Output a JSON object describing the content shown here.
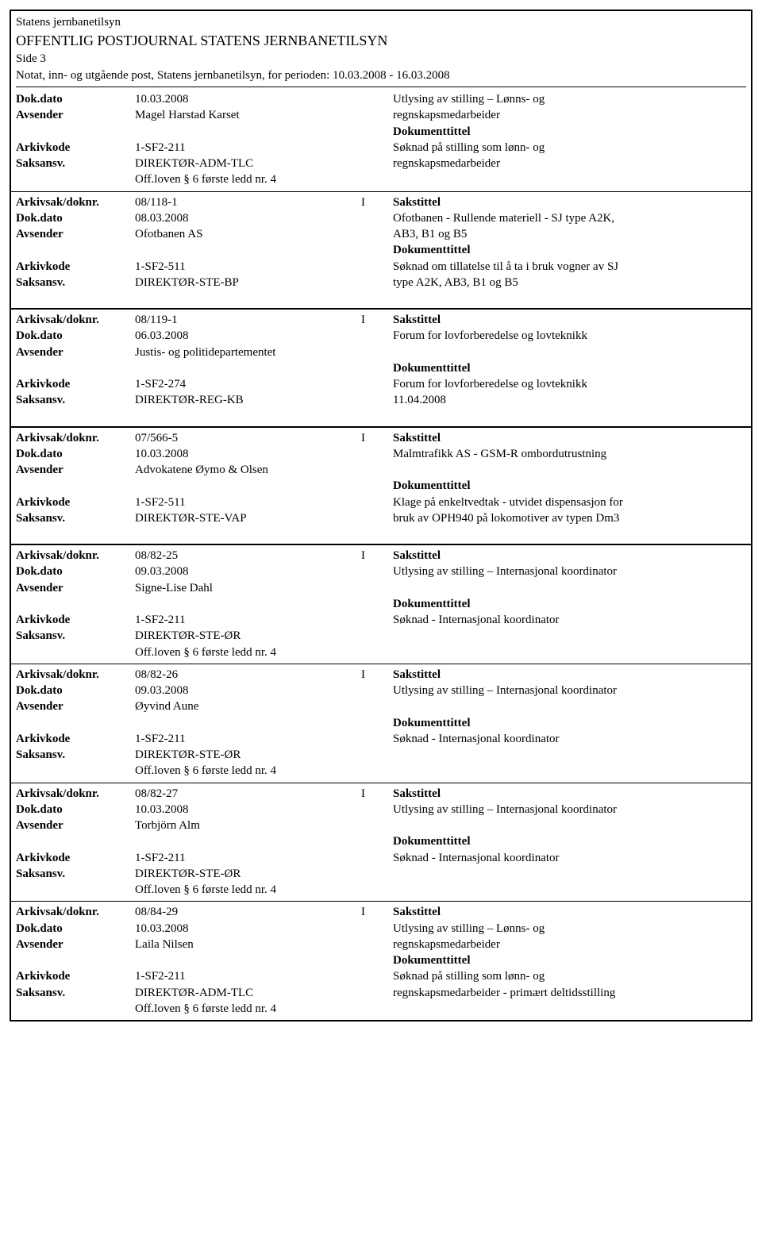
{
  "header": {
    "org": "Statens jernbanetilsyn",
    "title": "OFFENTLIG POSTJOURNAL STATENS JERNBANETILSYN",
    "side": "Side 3",
    "subtitle": "Notat, inn- og utgående post, Statens jernbanetilsyn, for perioden: 10.03.2008 - 16.03.2008"
  },
  "labels": {
    "dokdato": "Dok.dato",
    "avsender": "Avsender",
    "arkivkode": "Arkivkode",
    "saksansv": "Saksansv.",
    "arkivsak": "Arkivsak/doknr.",
    "sakstittel": "Sakstittel",
    "dokumenttittel": "Dokumenttittel",
    "loven": "Off.loven § 6 første ledd nr. 4"
  },
  "entries": [
    {
      "continued": true,
      "rows": [
        {
          "dokdato": "10.03.2008",
          "sak_right": "Utlysing av stilling – Lønns- og"
        },
        {
          "avsender": "Magel Harstad Karset",
          "sak_right": "regnskapsmedarbeider"
        },
        {
          "empty_left": true,
          "right_label": "Dokumenttittel"
        },
        {
          "arkivkode": "1-SF2-211",
          "sak_right": "Søknad på stilling som lønn- og"
        },
        {
          "saksansv": "DIREKTØR-ADM-TLC",
          "sak_right": "regnskapsmedarbeider"
        }
      ],
      "loven": true
    },
    {
      "rows": [
        {
          "arkivsak": "08/118-1",
          "type": "I",
          "right_label": "Sakstittel"
        },
        {
          "dokdato": "08.03.2008",
          "sak_right": "Ofotbanen - Rullende materiell - SJ type A2K,"
        },
        {
          "avsender": "Ofotbanen AS",
          "sak_right": "AB3, B1 og B5"
        },
        {
          "empty_left": true,
          "right_label": "Dokumenttittel"
        },
        {
          "arkivkode": "1-SF2-511",
          "sak_right": "Søknad om tillatelse til å ta i bruk vogner av SJ"
        },
        {
          "saksansv": "DIREKTØR-STE-BP",
          "sak_right": "type A2K, AB3, B1 og B5"
        }
      ]
    },
    {
      "spaced": true,
      "rows": [
        {
          "arkivsak": "08/119-1",
          "type": "I",
          "right_label": "Sakstittel"
        },
        {
          "dokdato": "06.03.2008",
          "sak_right": "Forum for lovforberedelse og lovteknikk"
        },
        {
          "avsender": "Justis- og politidepartementet"
        },
        {
          "empty_left": true,
          "right_label": "Dokumenttittel"
        },
        {
          "arkivkode": "1-SF2-274",
          "sak_right": "Forum for lovforberedelse og lovteknikk"
        },
        {
          "saksansv": "DIREKTØR-REG-KB",
          "sak_right": "11.04.2008"
        }
      ]
    },
    {
      "spaced": true,
      "rows": [
        {
          "arkivsak": "07/566-5",
          "type": "I",
          "right_label": "Sakstittel"
        },
        {
          "dokdato": "10.03.2008",
          "sak_right": "Malmtrafikk AS - GSM-R ombordutrustning"
        },
        {
          "avsender": "Advokatene Øymo & Olsen"
        },
        {
          "empty_left": true,
          "right_label": "Dokumenttittel"
        },
        {
          "arkivkode": "1-SF2-511",
          "sak_right": "Klage på enkeltvedtak - utvidet dispensasjon for"
        },
        {
          "saksansv": "DIREKTØR-STE-VAP",
          "sak_right": "bruk av OPH940 på lokomotiver av typen Dm3"
        }
      ]
    },
    {
      "spaced": true,
      "rows": [
        {
          "arkivsak": "08/82-25",
          "type": "I",
          "right_label": "Sakstittel"
        },
        {
          "dokdato": "09.03.2008",
          "sak_right": "Utlysing av stilling – Internasjonal koordinator"
        },
        {
          "avsender": "Signe-Lise Dahl"
        },
        {
          "empty_left": true,
          "right_label": "Dokumenttittel"
        },
        {
          "arkivkode": "1-SF2-211",
          "sak_right": "Søknad - Internasjonal koordinator"
        },
        {
          "saksansv": "DIREKTØR-STE-ØR"
        }
      ],
      "loven": true
    },
    {
      "rows": [
        {
          "arkivsak": "08/82-26",
          "type": "I",
          "right_label": "Sakstittel"
        },
        {
          "dokdato": "09.03.2008",
          "sak_right": "Utlysing av stilling – Internasjonal koordinator"
        },
        {
          "avsender": "Øyvind Aune"
        },
        {
          "empty_left": true,
          "right_label": "Dokumenttittel"
        },
        {
          "arkivkode": "1-SF2-211",
          "sak_right": "Søknad - Internasjonal koordinator"
        },
        {
          "saksansv": "DIREKTØR-STE-ØR"
        }
      ],
      "loven": true
    },
    {
      "rows": [
        {
          "arkivsak": "08/82-27",
          "type": "I",
          "right_label": "Sakstittel"
        },
        {
          "dokdato": "10.03.2008",
          "sak_right": "Utlysing av stilling – Internasjonal koordinator"
        },
        {
          "avsender": "Torbjörn Alm"
        },
        {
          "empty_left": true,
          "right_label": "Dokumenttittel"
        },
        {
          "arkivkode": "1-SF2-211",
          "sak_right": "Søknad - Internasjonal koordinator"
        },
        {
          "saksansv": "DIREKTØR-STE-ØR"
        }
      ],
      "loven": true
    },
    {
      "rows": [
        {
          "arkivsak": "08/84-29",
          "type": "I",
          "right_label": "Sakstittel"
        },
        {
          "dokdato": "10.03.2008",
          "sak_right": "Utlysing av stilling – Lønns- og"
        },
        {
          "avsender": "Laila Nilsen",
          "sak_right": "regnskapsmedarbeider"
        },
        {
          "empty_left": true,
          "right_label": "Dokumenttittel"
        },
        {
          "arkivkode": "1-SF2-211",
          "sak_right": "Søknad på stilling som lønn- og"
        },
        {
          "saksansv": "DIREKTØR-ADM-TLC",
          "sak_right": "regnskapsmedarbeider - primært deltidsstilling"
        }
      ],
      "loven": true
    }
  ]
}
